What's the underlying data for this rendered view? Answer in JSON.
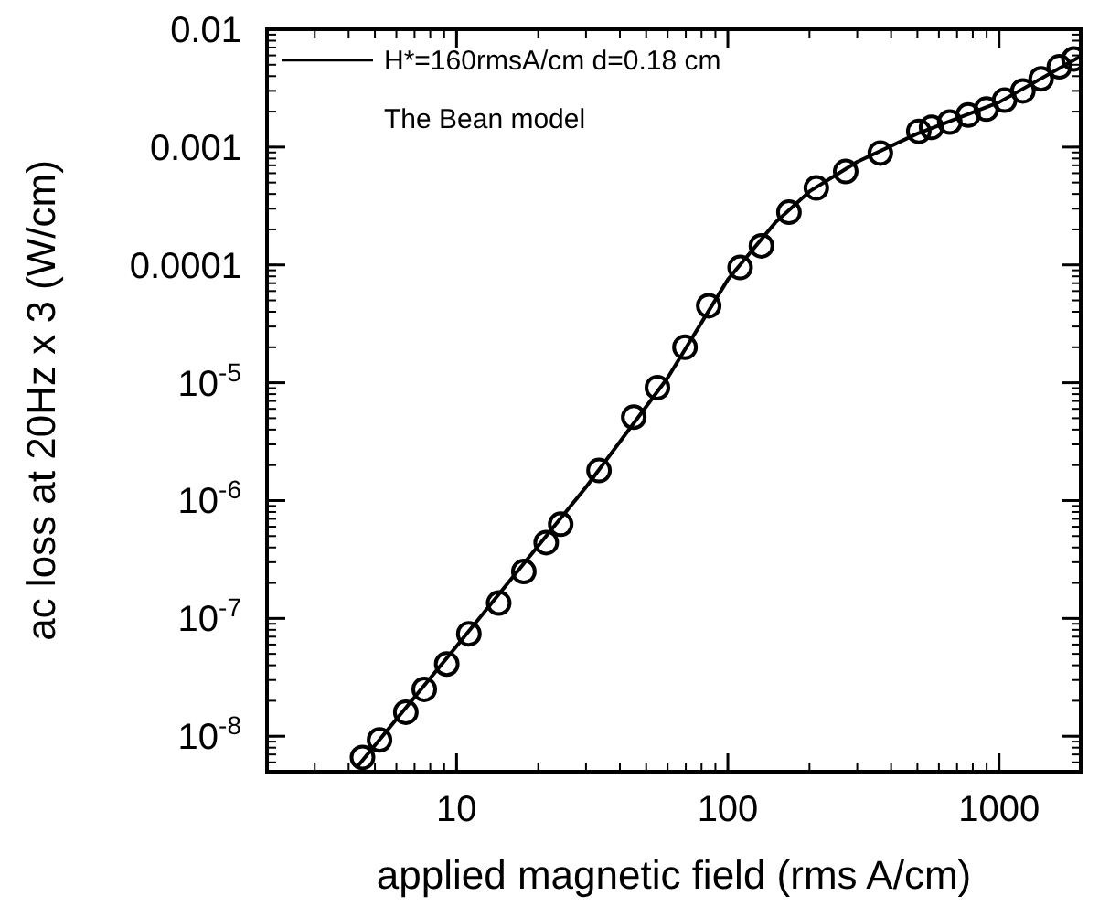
{
  "chart_data": {
    "type": "scatter",
    "xlabel": "applied magnetic field (rms A/cm)",
    "ylabel": "ac loss at 20Hz x 3  (W/cm)",
    "log": "xy",
    "xlim": [
      2,
      2000
    ],
    "ylim": [
      5e-09,
      0.01
    ],
    "xticks": [
      10,
      100,
      1000
    ],
    "yticks": [
      0.01,
      0.001,
      0.0001,
      {
        "value": 1e-05,
        "label": "10$^{-5}$"
      },
      {
        "value": 1e-06,
        "label": "10$^{-6}$"
      },
      {
        "value": 1e-07,
        "label": "10$^{-7}$"
      },
      {
        "value": 1e-08,
        "label": "10$^{-8}$"
      }
    ],
    "grid": false,
    "legend": "top left",
    "annotations": [
      "The Bean model"
    ],
    "series": [
      {
        "color": "#000000",
        "marker": "circle",
        "x": [
          4.5,
          5.2,
          6.5,
          7.6,
          9.2,
          11.1,
          14.3,
          17.7,
          21.4,
          24.2,
          33.5,
          45,
          55,
          69.5,
          85,
          111,
          133,
          168,
          212,
          272,
          365,
          506,
          564,
          658,
          769,
          898,
          1048,
          1224,
          1429,
          1668,
          1888
        ],
        "values": [
          6.6e-09,
          9.3e-09,
          1.6e-08,
          2.5e-08,
          4.1e-08,
          7.4e-08,
          1.35e-07,
          2.5e-07,
          4.4e-07,
          6.3e-07,
          1.8e-06,
          5.1e-06,
          9.1e-06,
          2e-05,
          4.5e-05,
          9.5e-05,
          0.000145,
          0.00028,
          0.00045,
          0.00062,
          0.00089,
          0.00136,
          0.00147,
          0.00163,
          0.00187,
          0.0021,
          0.0025,
          0.003,
          0.0038,
          0.0048,
          0.0056
        ]
      },
      {
        "type": "line",
        "name": "H*=160rmsA/cm d=0.18 cm",
        "color": "#000000",
        "marker": "none",
        "line_style": "solid",
        "x": [
          4.3,
          10,
          30,
          60,
          100,
          150,
          200,
          300,
          500,
          1000,
          2000
        ],
        "values": [
          5.5e-09,
          5.8e-08,
          1.3e-06,
          1.1e-05,
          7.5e-05,
          0.00023,
          0.00042,
          0.00075,
          0.0013,
          0.0024,
          0.0059
        ]
      }
    ]
  }
}
